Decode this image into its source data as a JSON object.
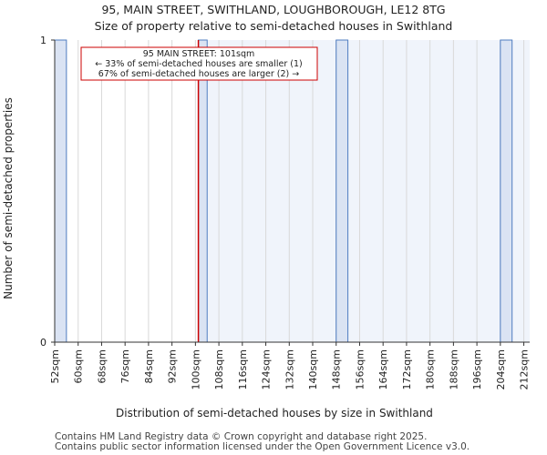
{
  "chart_data": {
    "type": "bar",
    "title": "95, MAIN STREET, SWITHLAND, LOUGHBOROUGH, LE12 8TG",
    "subtitle": "Size of property relative to semi-detached houses in Swithland",
    "xlabel": "Distribution of semi-detached houses by size in Swithland",
    "ylabel": "Number of semi-detached properties",
    "categories": [
      "52sqm",
      "60sqm",
      "68sqm",
      "76sqm",
      "84sqm",
      "92sqm",
      "100sqm",
      "108sqm",
      "116sqm",
      "124sqm",
      "132sqm",
      "140sqm",
      "148sqm",
      "156sqm",
      "164sqm",
      "172sqm",
      "180sqm",
      "188sqm",
      "196sqm",
      "204sqm",
      "212sqm"
    ],
    "bins": [
      {
        "start": 52,
        "end": 56,
        "value": 1
      },
      {
        "start": 101,
        "end": 104,
        "value": 1
      },
      {
        "start": 148,
        "end": 152,
        "value": 1
      },
      {
        "start": 204,
        "end": 208,
        "value": 1
      }
    ],
    "y_ticks": [
      "0",
      "1"
    ],
    "ylim": [
      0,
      1
    ],
    "xlim": [
      52,
      214
    ],
    "marker": {
      "value": 101
    },
    "annotation": {
      "line1": "95 MAIN STREET: 101sqm",
      "line2": "← 33% of semi-detached houses are smaller (1)",
      "line3": "67% of semi-detached houses are larger (2) →"
    },
    "colors": {
      "bar": "#dae3f3",
      "bar_edge": "#4f7cc0",
      "marker": "#cc0000",
      "shade": "#f0f4fb",
      "grid": "#d9d9d9"
    }
  },
  "footer": {
    "line1": "Contains HM Land Registry data © Crown copyright and database right 2025.",
    "line2": "Contains public sector information licensed under the Open Government Licence v3.0."
  }
}
